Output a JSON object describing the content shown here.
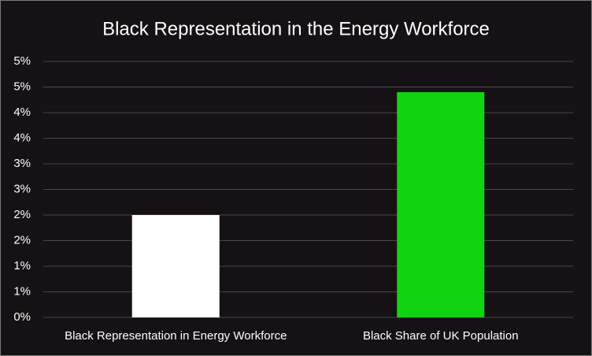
{
  "chart_data": {
    "type": "bar",
    "title": "Black Representation in the Energy Workforce",
    "categories": [
      "Black Representation in Energy Workforce",
      "Black Share of UK Population"
    ],
    "values": [
      2.0,
      4.4
    ],
    "colors": [
      "#ffffff",
      "#12d312"
    ],
    "ylim": [
      0,
      5
    ],
    "yticks": [
      {
        "value": 0,
        "label": "0%"
      },
      {
        "value": 0.5,
        "label": "1%"
      },
      {
        "value": 1,
        "label": "1%"
      },
      {
        "value": 1.5,
        "label": "2%"
      },
      {
        "value": 2,
        "label": "2%"
      },
      {
        "value": 2.5,
        "label": "3%"
      },
      {
        "value": 3,
        "label": "3%"
      },
      {
        "value": 3.5,
        "label": "4%"
      },
      {
        "value": 4,
        "label": "4%"
      },
      {
        "value": 4.5,
        "label": "5%"
      },
      {
        "value": 5,
        "label": "5%"
      }
    ],
    "grid": true
  }
}
